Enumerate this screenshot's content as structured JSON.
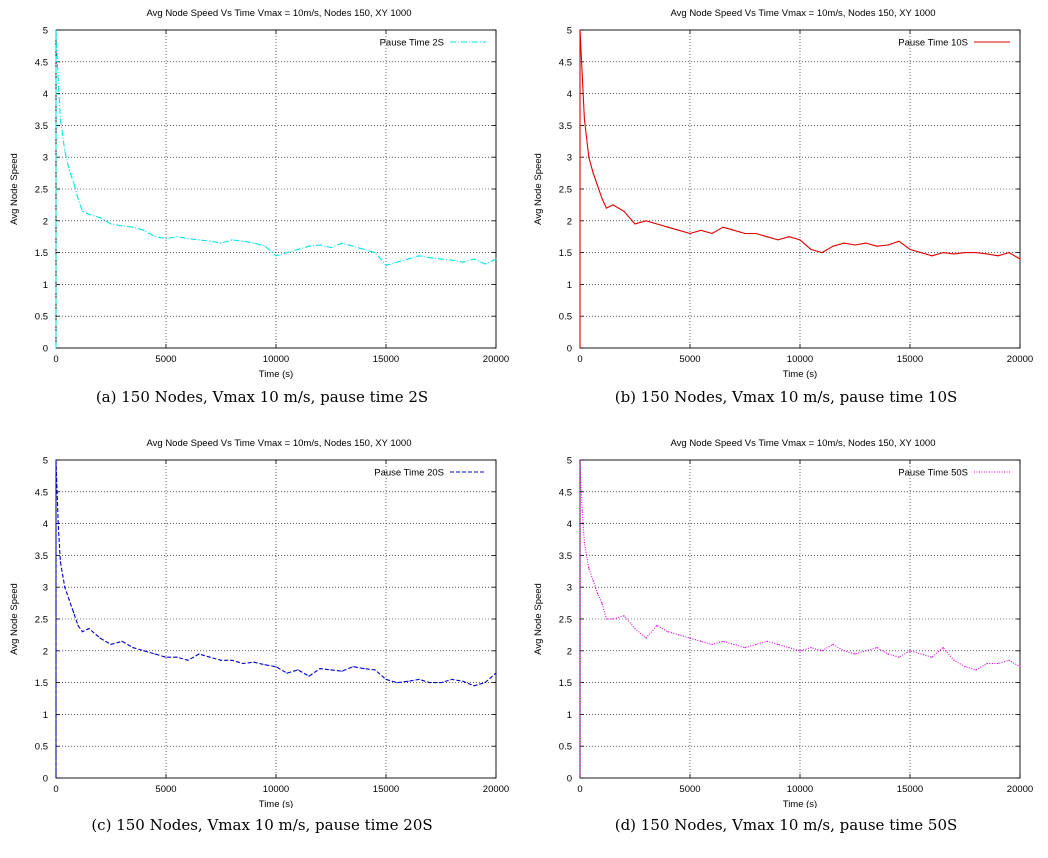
{
  "chart_data": [
    {
      "type": "line",
      "title": "Avg Node Speed  Vs Time Vmax = 10m/s, Nodes 150, XY 1000",
      "xlabel": "Time (s)",
      "ylabel": "Avg Node Speed",
      "xlim": [
        0,
        20000
      ],
      "ylim": [
        0,
        5
      ],
      "xticks": [
        "0",
        "5000",
        "10000",
        "15000",
        "20000"
      ],
      "yticks": [
        "0",
        "0.5",
        "1",
        "1.5",
        "2",
        "2.5",
        "3",
        "3.5",
        "4",
        "4.5",
        "5"
      ],
      "grid": true,
      "legend_position": "top-right",
      "line_style": "dash-dot",
      "caption": "(a)  150 Nodes, Vmax 10 m/s, pause time 2S",
      "series": [
        {
          "name": "Pause Time 2S",
          "color": "#00e5e5",
          "x": [
            0,
            100,
            200,
            400,
            600,
            800,
            1000,
            1200,
            1500,
            2000,
            2500,
            3000,
            3500,
            4000,
            4500,
            5000,
            5500,
            6000,
            6500,
            7000,
            7500,
            8000,
            8500,
            9000,
            9500,
            10000,
            10500,
            11000,
            11500,
            12000,
            12500,
            13000,
            13500,
            14000,
            14500,
            15000,
            15500,
            16000,
            16500,
            17000,
            17500,
            18000,
            18500,
            19000,
            19500,
            20000
          ],
          "y": [
            5.0,
            4.2,
            3.6,
            3.1,
            2.8,
            2.6,
            2.35,
            2.15,
            2.1,
            2.05,
            1.95,
            1.92,
            1.9,
            1.85,
            1.75,
            1.72,
            1.75,
            1.72,
            1.7,
            1.68,
            1.65,
            1.7,
            1.68,
            1.65,
            1.6,
            1.45,
            1.5,
            1.55,
            1.6,
            1.62,
            1.58,
            1.65,
            1.6,
            1.55,
            1.5,
            1.3,
            1.35,
            1.4,
            1.45,
            1.42,
            1.4,
            1.38,
            1.35,
            1.4,
            1.32,
            1.4
          ]
        }
      ]
    },
    {
      "type": "line",
      "title": "Avg Node Speed  Vs Time Vmax = 10m/s, Nodes 150, XY 1000",
      "xlabel": "Time (s)",
      "ylabel": "Avg Node Speed",
      "xlim": [
        0,
        20000
      ],
      "ylim": [
        0,
        5
      ],
      "xticks": [
        "0",
        "5000",
        "10000",
        "15000",
        "20000"
      ],
      "yticks": [
        "0",
        "0.5",
        "1",
        "1.5",
        "2",
        "2.5",
        "3",
        "3.5",
        "4",
        "4.5",
        "5"
      ],
      "grid": true,
      "legend_position": "top-right",
      "line_style": "solid",
      "caption": "(b)  150 Nodes, Vmax 10 m/s, pause time 10S",
      "series": [
        {
          "name": "Pause Time 10S",
          "color": "#e00000",
          "x": [
            0,
            100,
            200,
            400,
            600,
            800,
            1000,
            1200,
            1500,
            2000,
            2500,
            3000,
            3500,
            4000,
            4500,
            5000,
            5500,
            6000,
            6500,
            7000,
            7500,
            8000,
            8500,
            9000,
            9500,
            10000,
            10500,
            11000,
            11500,
            12000,
            12500,
            13000,
            13500,
            14000,
            14500,
            15000,
            15500,
            16000,
            16500,
            17000,
            17500,
            18000,
            18500,
            19000,
            19500,
            20000
          ],
          "y": [
            5.0,
            4.3,
            3.6,
            3.0,
            2.75,
            2.55,
            2.35,
            2.2,
            2.25,
            2.15,
            1.95,
            2.0,
            1.95,
            1.9,
            1.85,
            1.8,
            1.85,
            1.8,
            1.9,
            1.85,
            1.8,
            1.8,
            1.75,
            1.7,
            1.75,
            1.7,
            1.55,
            1.5,
            1.6,
            1.65,
            1.62,
            1.65,
            1.6,
            1.62,
            1.68,
            1.55,
            1.5,
            1.45,
            1.5,
            1.48,
            1.5,
            1.5,
            1.48,
            1.45,
            1.5,
            1.4
          ]
        }
      ]
    },
    {
      "type": "line",
      "title": "Avg Node Speed  Vs Time Vmax = 10m/s, Nodes 150, XY 1000",
      "xlabel": "Time (s)",
      "ylabel": "Avg Node Speed",
      "xlim": [
        0,
        20000
      ],
      "ylim": [
        0,
        5
      ],
      "xticks": [
        "0",
        "5000",
        "10000",
        "15000",
        "20000"
      ],
      "yticks": [
        "0",
        "0.5",
        "1",
        "1.5",
        "2",
        "2.5",
        "3",
        "3.5",
        "4",
        "4.5",
        "5"
      ],
      "grid": true,
      "legend_position": "top-right",
      "line_style": "dashed",
      "caption": "(c)  150 Nodes, Vmax 10 m/s, pause time 20S",
      "series": [
        {
          "name": "Pause Time 20S",
          "color": "#0000cc",
          "x": [
            0,
            100,
            200,
            400,
            600,
            800,
            1000,
            1200,
            1500,
            2000,
            2500,
            3000,
            3500,
            4000,
            4500,
            5000,
            5500,
            6000,
            6500,
            7000,
            7500,
            8000,
            8500,
            9000,
            9500,
            10000,
            10500,
            11000,
            11500,
            12000,
            12500,
            13000,
            13500,
            14000,
            14500,
            15000,
            15500,
            16000,
            16500,
            17000,
            17500,
            18000,
            18500,
            19000,
            19500,
            20000
          ],
          "y": [
            5.0,
            4.0,
            3.4,
            3.0,
            2.8,
            2.6,
            2.4,
            2.3,
            2.35,
            2.2,
            2.1,
            2.15,
            2.05,
            2.0,
            1.95,
            1.9,
            1.9,
            1.85,
            1.95,
            1.9,
            1.85,
            1.85,
            1.8,
            1.82,
            1.78,
            1.75,
            1.65,
            1.7,
            1.6,
            1.72,
            1.7,
            1.68,
            1.75,
            1.72,
            1.7,
            1.55,
            1.5,
            1.52,
            1.55,
            1.5,
            1.5,
            1.55,
            1.52,
            1.45,
            1.5,
            1.65
          ]
        }
      ]
    },
    {
      "type": "line",
      "title": "Avg Node Speed  Vs Time Vmax = 10m/s, Nodes 150, XY 1000",
      "xlabel": "Time (s)",
      "ylabel": "Avg Node Speed",
      "xlim": [
        0,
        20000
      ],
      "ylim": [
        0,
        5
      ],
      "xticks": [
        "0",
        "5000",
        "10000",
        "15000",
        "20000"
      ],
      "yticks": [
        "0",
        "0.5",
        "1",
        "1.5",
        "2",
        "2.5",
        "3",
        "3.5",
        "4",
        "4.5",
        "5"
      ],
      "grid": true,
      "legend_position": "top-right",
      "line_style": "dotted",
      "caption": "(d)  150 Nodes, Vmax 10 m/s, pause time 50S",
      "series": [
        {
          "name": "Pause Time 50S",
          "color": "#e000e0",
          "x": [
            0,
            100,
            200,
            400,
            600,
            800,
            1000,
            1200,
            1500,
            2000,
            2500,
            3000,
            3500,
            4000,
            4500,
            5000,
            5500,
            6000,
            6500,
            7000,
            7500,
            8000,
            8500,
            9000,
            9500,
            10000,
            10500,
            11000,
            11500,
            12000,
            12500,
            13000,
            13500,
            14000,
            14500,
            15000,
            15500,
            16000,
            16500,
            17000,
            17500,
            18000,
            18500,
            19000,
            19500,
            20000
          ],
          "y": [
            5.0,
            4.2,
            3.7,
            3.3,
            3.1,
            2.9,
            2.75,
            2.5,
            2.5,
            2.55,
            2.35,
            2.2,
            2.4,
            2.3,
            2.25,
            2.2,
            2.15,
            2.1,
            2.15,
            2.1,
            2.05,
            2.1,
            2.15,
            2.1,
            2.05,
            2.0,
            2.05,
            2.0,
            2.1,
            2.0,
            1.95,
            2.0,
            2.05,
            1.95,
            1.9,
            2.0,
            1.95,
            1.9,
            2.05,
            1.85,
            1.75,
            1.7,
            1.8,
            1.8,
            1.85,
            1.75
          ]
        }
      ]
    }
  ]
}
